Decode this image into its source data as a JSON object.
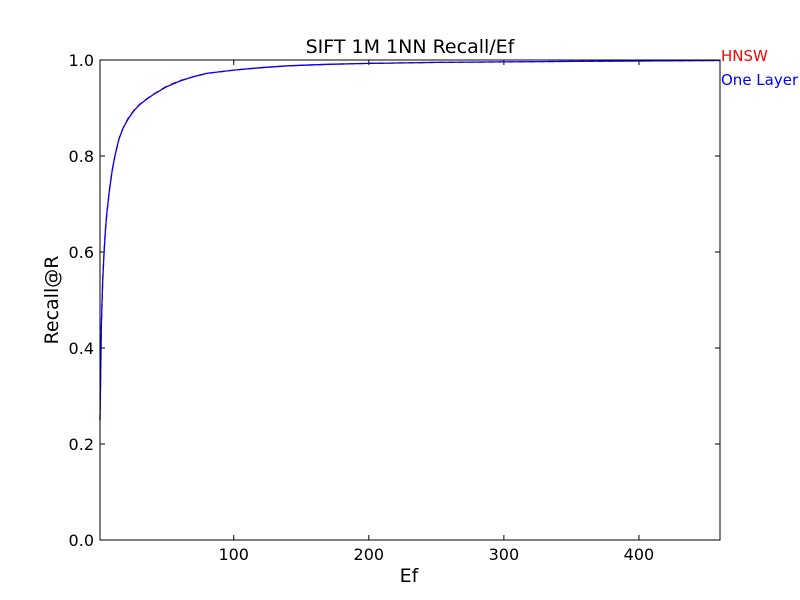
{
  "chart_data": {
    "type": "line",
    "title": "SIFT 1M 1NN Recall/Ef",
    "xlabel": "Ef",
    "ylabel": "Recall@R",
    "xlim": [
      1,
      460
    ],
    "ylim": [
      0.0,
      1.0
    ],
    "xticks": [
      100,
      200,
      300,
      400
    ],
    "xtick_labels": [
      "100",
      "200",
      "300",
      "400"
    ],
    "yticks": [
      0.0,
      0.2,
      0.4,
      0.6,
      0.8,
      1.0
    ],
    "ytick_labels": [
      "0.0",
      "0.2",
      "0.4",
      "0.6",
      "0.8",
      "1.0"
    ],
    "grid": false,
    "legend": "top-right, outside plot",
    "series": [
      {
        "name": "HNSW",
        "color": "#ff0000",
        "style": "dashed",
        "x": [
          1,
          2,
          3,
          4,
          5,
          6,
          8,
          10,
          12,
          15,
          18,
          22,
          26,
          30,
          35,
          40,
          50,
          60,
          70,
          80,
          100,
          120,
          140,
          170,
          200,
          250,
          300,
          350,
          400,
          460
        ],
        "y": [
          0.25,
          0.45,
          0.54,
          0.6,
          0.645,
          0.68,
          0.73,
          0.77,
          0.8,
          0.835,
          0.858,
          0.88,
          0.895,
          0.907,
          0.918,
          0.928,
          0.945,
          0.957,
          0.965,
          0.972,
          0.979,
          0.984,
          0.988,
          0.991,
          0.993,
          0.995,
          0.996,
          0.997,
          0.998,
          0.999
        ]
      },
      {
        "name": "One Layer",
        "color": "#0000ff",
        "style": "solid",
        "x": [
          1,
          2,
          3,
          4,
          5,
          6,
          8,
          10,
          12,
          15,
          18,
          22,
          26,
          30,
          35,
          40,
          50,
          60,
          70,
          80,
          100,
          120,
          140,
          170,
          200,
          250,
          300,
          350,
          400,
          460
        ],
        "y": [
          0.25,
          0.45,
          0.54,
          0.6,
          0.645,
          0.68,
          0.73,
          0.77,
          0.8,
          0.835,
          0.858,
          0.878,
          0.894,
          0.906,
          0.917,
          0.927,
          0.944,
          0.956,
          0.965,
          0.972,
          0.979,
          0.984,
          0.988,
          0.991,
          0.993,
          0.995,
          0.996,
          0.997,
          0.998,
          0.999
        ]
      }
    ]
  }
}
